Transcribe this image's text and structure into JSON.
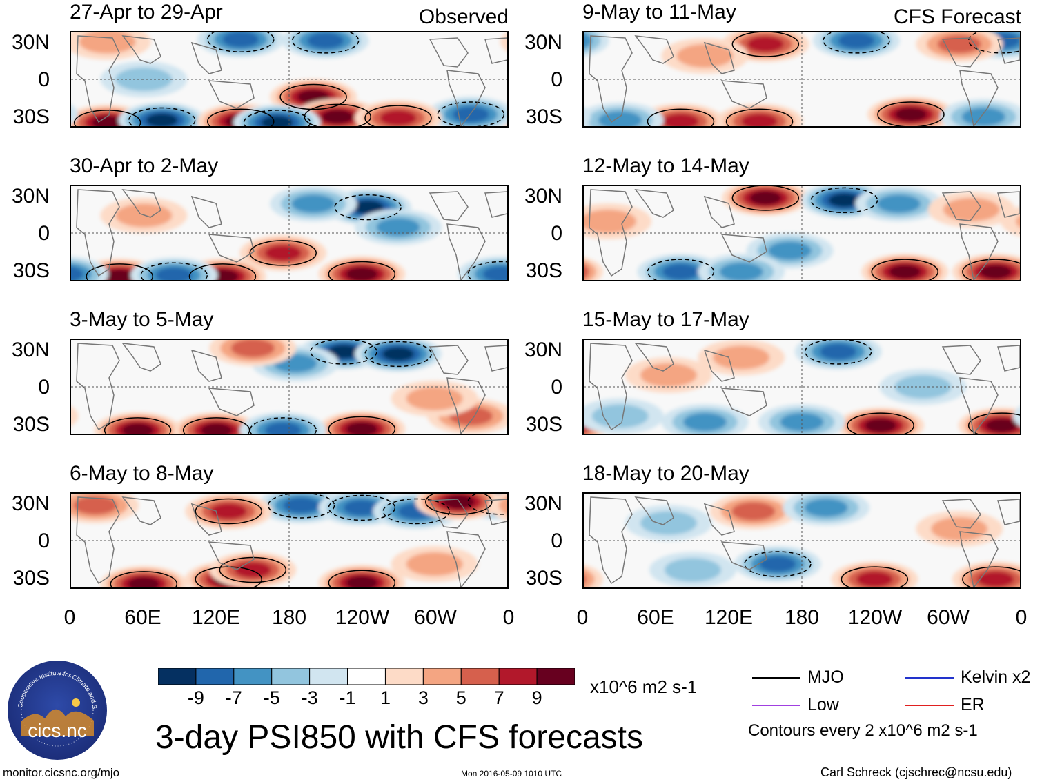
{
  "title": "3-day PSI850 with CFS forecasts",
  "columns": [
    {
      "label": "Observed",
      "panels": [
        "27-Apr to 29-Apr",
        "30-Apr to 2-May",
        "3-May to 5-May",
        "6-May to 8-May"
      ]
    },
    {
      "label": "CFS Forecast",
      "panels": [
        "9-May to 11-May",
        "12-May to 14-May",
        "15-May to 17-May",
        "18-May to 20-May"
      ]
    }
  ],
  "lat_ticks": [
    "30N",
    "0",
    "30S"
  ],
  "lon_ticks": [
    "0",
    "60E",
    "120E",
    "180",
    "120W",
    "60W",
    "0"
  ],
  "colorbar": {
    "labels": [
      "-9",
      "-7",
      "-5",
      "-3",
      "-1",
      "1",
      "3",
      "5",
      "7",
      "9"
    ],
    "colors": [
      "#053061",
      "#2166ac",
      "#4393c3",
      "#92c5de",
      "#d1e5f0",
      "#ffffff",
      "#fddbc7",
      "#f4a582",
      "#d6604d",
      "#b2182b",
      "#67001f"
    ],
    "units": "x10^6 m2 s-1"
  },
  "legend": {
    "items": [
      {
        "label": "MJO",
        "color": "#000000"
      },
      {
        "label": "Kelvin x2",
        "color": "#2233cc"
      },
      {
        "label": "Low",
        "color": "#a040e0"
      },
      {
        "label": "ER",
        "color": "#e02020"
      }
    ],
    "note": "Contours every 2 x10^6 m2 s-1"
  },
  "logo_text": "cics.nc",
  "logo_ring_text": "Cooperative Institute for Climate and Satellites",
  "footer": {
    "left": "monitor.cicsnc.org/mjo",
    "center": "Mon 2016-05-09 1010 UTC",
    "right": "Carl Schreck (cjschrec@ncsu.edu)"
  },
  "chart_data": {
    "type": "heatmap",
    "title": "3-day PSI850 with CFS forecasts",
    "variable": "850-hPa streamfunction anomaly",
    "units": "x10^6 m2 s-1",
    "x_range": [
      0,
      360
    ],
    "x_ticks": [
      "0",
      "60E",
      "120E",
      "180",
      "120W",
      "60W",
      "0"
    ],
    "y_range": [
      -40,
      40
    ],
    "y_ticks": [
      "30N",
      "0",
      "30S"
    ],
    "color_levels": [
      -9,
      -7,
      -5,
      -3,
      -1,
      1,
      3,
      5,
      7,
      9
    ],
    "contour_interval": 2,
    "panels": [
      {
        "period": "27-Apr to 29-Apr",
        "source": "Observed",
        "features": [
          {
            "lon": 140,
            "lat": 34,
            "value": -8
          },
          {
            "lon": 210,
            "lat": 33,
            "value": -7
          },
          {
            "lon": 30,
            "lat": 32,
            "value": 4
          },
          {
            "lon": 200,
            "lat": -15,
            "value": 10
          },
          {
            "lon": 220,
            "lat": -32,
            "value": 9
          },
          {
            "lon": 30,
            "lat": -37,
            "value": 10
          },
          {
            "lon": 75,
            "lat": -35,
            "value": -9
          },
          {
            "lon": 140,
            "lat": -36,
            "value": 9
          },
          {
            "lon": 170,
            "lat": -37,
            "value": -9
          },
          {
            "lon": 330,
            "lat": -30,
            "value": -8
          },
          {
            "lon": 270,
            "lat": -33,
            "value": 8
          },
          {
            "lon": 60,
            "lat": 0,
            "value": -4
          }
        ]
      },
      {
        "period": "30-Apr to 2-May",
        "source": "Observed",
        "features": [
          {
            "lon": 245,
            "lat": 22,
            "value": -9
          },
          {
            "lon": 200,
            "lat": 25,
            "value": -6
          },
          {
            "lon": 270,
            "lat": 5,
            "value": -5
          },
          {
            "lon": 240,
            "lat": -35,
            "value": 10
          },
          {
            "lon": 40,
            "lat": -37,
            "value": 10
          },
          {
            "lon": 125,
            "lat": -37,
            "value": 9
          },
          {
            "lon": 85,
            "lat": -36,
            "value": -7
          },
          {
            "lon": 175,
            "lat": -17,
            "value": 7
          },
          {
            "lon": 355,
            "lat": -35,
            "value": -8
          },
          {
            "lon": 60,
            "lat": 15,
            "value": 4
          }
        ]
      },
      {
        "period": "3-May to 5-May",
        "source": "Observed",
        "features": [
          {
            "lon": 225,
            "lat": 30,
            "value": -9
          },
          {
            "lon": 270,
            "lat": 28,
            "value": -9
          },
          {
            "lon": 185,
            "lat": 20,
            "value": -5
          },
          {
            "lon": 150,
            "lat": 33,
            "value": 6
          },
          {
            "lon": 55,
            "lat": -37,
            "value": 10
          },
          {
            "lon": 120,
            "lat": -37,
            "value": 9
          },
          {
            "lon": 240,
            "lat": -36,
            "value": 10
          },
          {
            "lon": 175,
            "lat": -37,
            "value": -7
          },
          {
            "lon": 330,
            "lat": -25,
            "value": 6
          },
          {
            "lon": 300,
            "lat": -10,
            "value": 4
          }
        ]
      },
      {
        "period": "6-May to 8-May",
        "source": "Observed",
        "features": [
          {
            "lon": 190,
            "lat": 30,
            "value": -8
          },
          {
            "lon": 240,
            "lat": 28,
            "value": -8
          },
          {
            "lon": 285,
            "lat": 25,
            "value": -8
          },
          {
            "lon": 355,
            "lat": 33,
            "value": -9
          },
          {
            "lon": 320,
            "lat": 33,
            "value": 9
          },
          {
            "lon": 130,
            "lat": 25,
            "value": 7
          },
          {
            "lon": 60,
            "lat": -37,
            "value": 10
          },
          {
            "lon": 130,
            "lat": -33,
            "value": 10
          },
          {
            "lon": 240,
            "lat": -36,
            "value": 9
          },
          {
            "lon": 300,
            "lat": -20,
            "value": 4
          },
          {
            "lon": 20,
            "lat": 30,
            "value": 5
          },
          {
            "lon": 150,
            "lat": -25,
            "value": 8
          }
        ]
      },
      {
        "period": "9-May to 11-May",
        "source": "CFS Forecast",
        "features": [
          {
            "lon": 150,
            "lat": 30,
            "value": 8
          },
          {
            "lon": 225,
            "lat": 33,
            "value": -8
          },
          {
            "lon": 345,
            "lat": 33,
            "value": -7
          },
          {
            "lon": 310,
            "lat": 30,
            "value": 5
          },
          {
            "lon": 270,
            "lat": -30,
            "value": 10
          },
          {
            "lon": 80,
            "lat": -36,
            "value": 8
          },
          {
            "lon": 145,
            "lat": -36,
            "value": 7
          },
          {
            "lon": 30,
            "lat": -35,
            "value": -6
          },
          {
            "lon": 330,
            "lat": -32,
            "value": -5
          },
          {
            "lon": 100,
            "lat": 20,
            "value": 4
          }
        ]
      },
      {
        "period": "12-May to 14-May",
        "source": "CFS Forecast",
        "features": [
          {
            "lon": 150,
            "lat": 30,
            "value": 9
          },
          {
            "lon": 215,
            "lat": 28,
            "value": -9
          },
          {
            "lon": 260,
            "lat": 25,
            "value": -5
          },
          {
            "lon": 170,
            "lat": -15,
            "value": -6
          },
          {
            "lon": 80,
            "lat": -33,
            "value": -8
          },
          {
            "lon": 130,
            "lat": -33,
            "value": -6
          },
          {
            "lon": 265,
            "lat": -33,
            "value": 9
          },
          {
            "lon": 340,
            "lat": -33,
            "value": 9
          },
          {
            "lon": 20,
            "lat": 10,
            "value": 4
          },
          {
            "lon": 320,
            "lat": 20,
            "value": 3
          }
        ]
      },
      {
        "period": "15-May to 17-May",
        "source": "CFS Forecast",
        "features": [
          {
            "lon": 210,
            "lat": 30,
            "value": -8
          },
          {
            "lon": 130,
            "lat": 25,
            "value": 4
          },
          {
            "lon": 245,
            "lat": -33,
            "value": 10
          },
          {
            "lon": 345,
            "lat": -33,
            "value": 9
          },
          {
            "lon": 30,
            "lat": -25,
            "value": -4
          },
          {
            "lon": 100,
            "lat": -30,
            "value": -5
          },
          {
            "lon": 180,
            "lat": -30,
            "value": -5
          },
          {
            "lon": 280,
            "lat": 0,
            "value": -4
          },
          {
            "lon": 70,
            "lat": 10,
            "value": 3
          }
        ]
      },
      {
        "period": "18-May to 20-May",
        "source": "CFS Forecast",
        "features": [
          {
            "lon": 140,
            "lat": 25,
            "value": 6
          },
          {
            "lon": 200,
            "lat": 28,
            "value": -5
          },
          {
            "lon": 160,
            "lat": -20,
            "value": -7
          },
          {
            "lon": 240,
            "lat": -33,
            "value": 8
          },
          {
            "lon": 340,
            "lat": -33,
            "value": 7
          },
          {
            "lon": 70,
            "lat": 15,
            "value": -4
          },
          {
            "lon": 90,
            "lat": -25,
            "value": -4
          },
          {
            "lon": 310,
            "lat": 10,
            "value": 3
          }
        ]
      }
    ]
  }
}
